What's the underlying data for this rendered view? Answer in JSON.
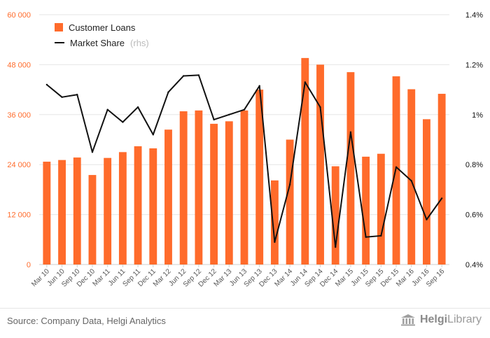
{
  "colors": {
    "bar": "#ff6b2b",
    "line": "#111111",
    "axis_left": "#ff6b2b",
    "axis_right": "#111111",
    "grid": "#e6e6e6"
  },
  "legend": {
    "loans_label": "Customer Loans",
    "share_label": "Market Share",
    "share_note": "(rhs)"
  },
  "source": "Source: Company Data, Helgi Analytics",
  "brand": {
    "prefix": "Helgi",
    "suffix": "Library",
    "icon": "library-building-icon"
  },
  "chart_data": {
    "type": "bar",
    "categories": [
      "Mar 10",
      "Jun 10",
      "Sep 10",
      "Dec 10",
      "Mar 11",
      "Jun 11",
      "Sep 11",
      "Dec 11",
      "Mar 12",
      "Jun 12",
      "Sep 12",
      "Dec 12",
      "Mar 13",
      "Jun 13",
      "Sep 13",
      "Dec 13",
      "Mar 14",
      "Jun 14",
      "Sep 14",
      "Dec 14",
      "Mar 15",
      "Jun 15",
      "Sep 15",
      "Dec 15",
      "Mar 16",
      "Jun 16",
      "Sep 16"
    ],
    "series": [
      {
        "name": "Customer Loans",
        "type": "bar",
        "axis": "left",
        "values": [
          24700,
          25100,
          25700,
          21500,
          25600,
          27000,
          28400,
          27900,
          32400,
          36800,
          37000,
          33800,
          34400,
          37000,
          42000,
          20200,
          30000,
          49600,
          48000,
          23600,
          46200,
          25900,
          26600,
          45200,
          42100,
          34900,
          41000
        ]
      },
      {
        "name": "Market Share",
        "type": "line",
        "axis": "right",
        "values": [
          1.12,
          1.07,
          1.08,
          0.85,
          1.02,
          0.97,
          1.03,
          0.92,
          1.09,
          1.155,
          1.158,
          0.98,
          1.0,
          1.02,
          1.115,
          0.49,
          0.72,
          1.13,
          1.03,
          0.47,
          0.93,
          0.51,
          0.515,
          0.79,
          0.735,
          0.58,
          0.665
        ]
      }
    ],
    "ylim": [
      0,
      60000
    ],
    "yticks": [
      0,
      12000,
      24000,
      36000,
      48000,
      60000
    ],
    "ytick_labels": [
      "0",
      "12 000",
      "24 000",
      "36 000",
      "48 000",
      "60 000"
    ],
    "y2lim": [
      0.4,
      1.4
    ],
    "y2ticks": [
      0.4,
      0.6,
      0.8,
      1.0,
      1.2,
      1.4
    ],
    "y2tick_labels": [
      "0.4%",
      "0.6%",
      "0.8%",
      "1%",
      "1.2%",
      "1.4%"
    ],
    "grid": true,
    "legend_position": "top-left"
  }
}
